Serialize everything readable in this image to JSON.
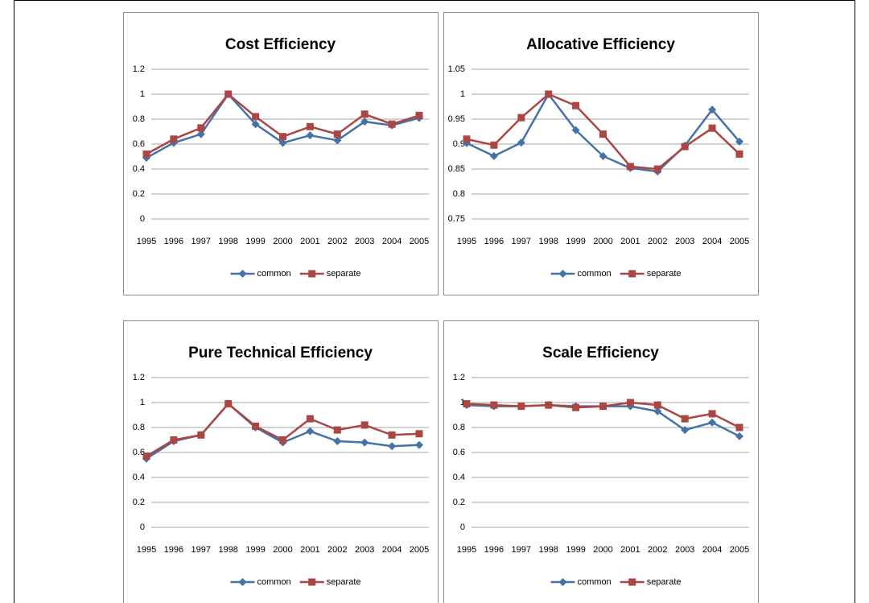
{
  "chart_data": [
    {
      "type": "line",
      "title": "Cost Efficiency",
      "categories": [
        "1995",
        "1996",
        "1997",
        "1998",
        "1999",
        "2000",
        "2001",
        "2002",
        "2003",
        "2004",
        "2005"
      ],
      "series": [
        {
          "name": "common",
          "color": "#4572a7",
          "values": [
            0.49,
            0.61,
            0.68,
            1.0,
            0.76,
            0.61,
            0.67,
            0.63,
            0.78,
            0.75,
            0.81
          ]
        },
        {
          "name": "separate",
          "color": "#aa4643",
          "values": [
            0.52,
            0.64,
            0.73,
            1.0,
            0.82,
            0.66,
            0.74,
            0.68,
            0.84,
            0.76,
            0.83
          ]
        }
      ],
      "ylim": [
        0,
        1.2
      ],
      "yticks": [
        0,
        0.2,
        0.4,
        0.6,
        0.8,
        1,
        1.2
      ],
      "grid": true,
      "legend": "bottom"
    },
    {
      "type": "line",
      "title": "Allocative Efficiency",
      "categories": [
        "1995",
        "1996",
        "1997",
        "1998",
        "1999",
        "2000",
        "2001",
        "2002",
        "2003",
        "2004",
        "2005"
      ],
      "series": [
        {
          "name": "common",
          "color": "#4572a7",
          "values": [
            0.902,
            0.876,
            0.903,
            1.0,
            0.928,
            0.876,
            0.852,
            0.845,
            0.897,
            0.969,
            0.905
          ]
        },
        {
          "name": "separate",
          "color": "#aa4643",
          "values": [
            0.91,
            0.898,
            0.953,
            1.0,
            0.977,
            0.92,
            0.855,
            0.85,
            0.895,
            0.932,
            0.88
          ]
        }
      ],
      "ylim": [
        0.75,
        1.05
      ],
      "yticks": [
        0.75,
        0.8,
        0.85,
        0.9,
        0.95,
        1,
        1.05
      ],
      "grid": true,
      "legend": "bottom"
    },
    {
      "type": "line",
      "title": "Pure Technical Efficiency",
      "categories": [
        "1995",
        "1996",
        "1997",
        "1998",
        "1999",
        "2000",
        "2001",
        "2002",
        "2003",
        "2004",
        "2005"
      ],
      "series": [
        {
          "name": "common",
          "color": "#4572a7",
          "values": [
            0.55,
            0.69,
            0.74,
            0.99,
            0.8,
            0.68,
            0.77,
            0.69,
            0.68,
            0.65,
            0.66
          ]
        },
        {
          "name": "separate",
          "color": "#aa4643",
          "values": [
            0.57,
            0.7,
            0.74,
            0.99,
            0.81,
            0.7,
            0.87,
            0.78,
            0.82,
            0.74,
            0.75
          ]
        }
      ],
      "ylim": [
        0,
        1.2
      ],
      "yticks": [
        0,
        0.2,
        0.4,
        0.6,
        0.8,
        1,
        1.2
      ],
      "grid": true,
      "legend": "bottom"
    },
    {
      "type": "line",
      "title": "Scale Efficiency",
      "categories": [
        "1995",
        "1996",
        "1997",
        "1998",
        "1999",
        "2000",
        "2001",
        "2002",
        "2003",
        "2004",
        "2005"
      ],
      "series": [
        {
          "name": "common",
          "color": "#4572a7",
          "values": [
            0.98,
            0.97,
            0.97,
            0.98,
            0.97,
            0.97,
            0.97,
            0.93,
            0.78,
            0.84,
            0.73
          ]
        },
        {
          "name": "separate",
          "color": "#aa4643",
          "values": [
            0.99,
            0.98,
            0.97,
            0.98,
            0.96,
            0.97,
            1.0,
            0.98,
            0.87,
            0.91,
            0.8
          ]
        }
      ],
      "ylim": [
        0,
        1.2
      ],
      "yticks": [
        0,
        0.2,
        0.4,
        0.6,
        0.8,
        1,
        1.2
      ],
      "grid": true,
      "legend": "bottom"
    }
  ]
}
